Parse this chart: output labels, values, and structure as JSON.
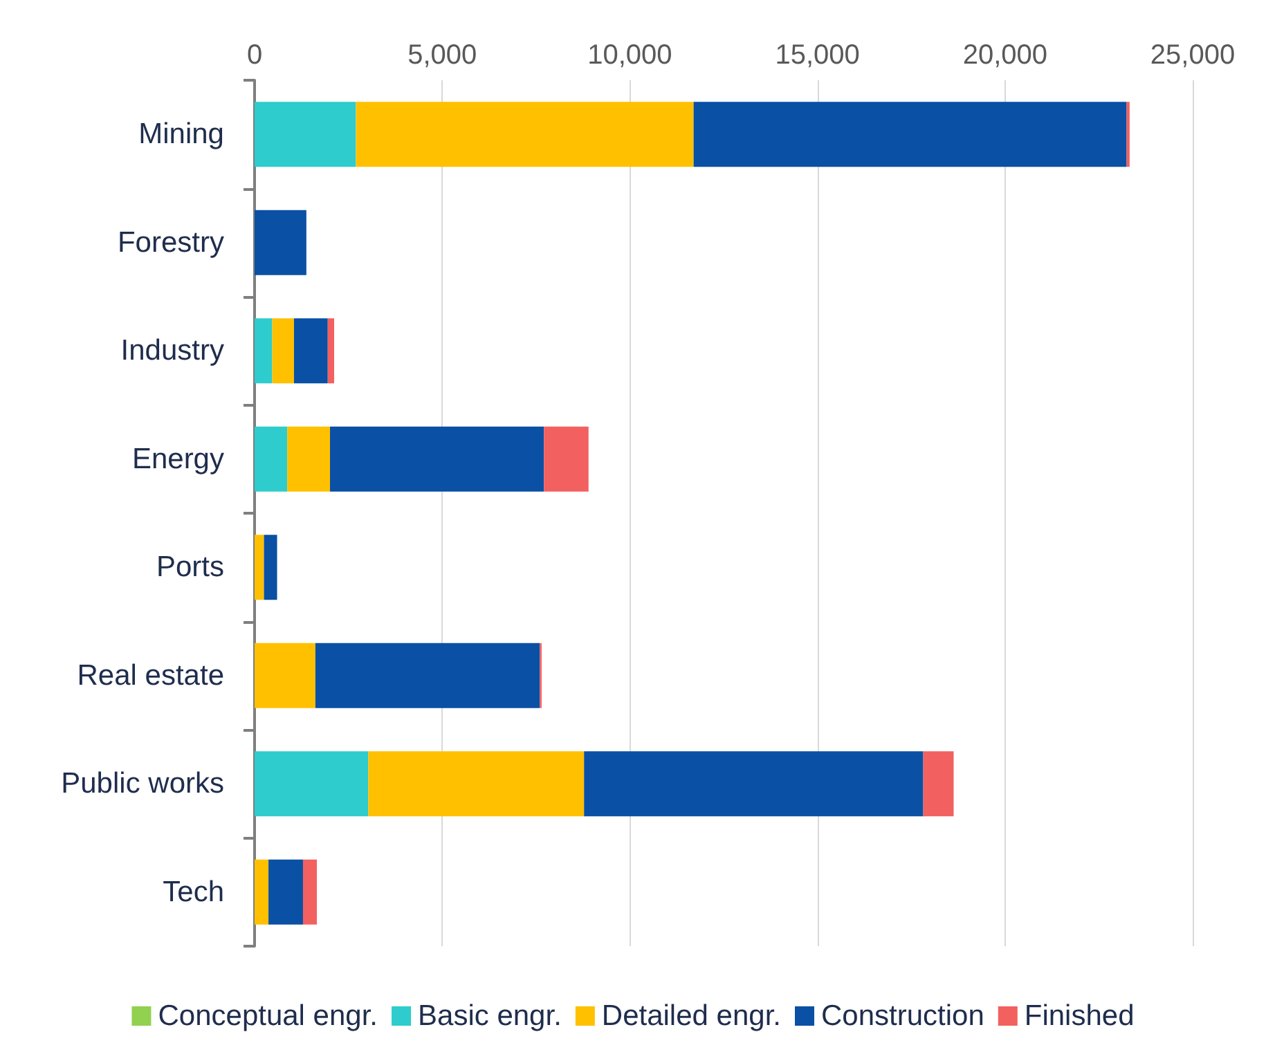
{
  "chart_data": {
    "type": "bar",
    "orientation": "horizontal",
    "stacked": true,
    "categories": [
      "Mining",
      "Forestry",
      "Industry",
      "Energy",
      "Ports",
      "Real estate",
      "Public works",
      "Tech"
    ],
    "series": [
      {
        "name": "Conceptual engr.",
        "color": "#92d050",
        "values": [
          0,
          0,
          0,
          0,
          0,
          0,
          0,
          0
        ]
      },
      {
        "name": "Basic engr.",
        "color": "#2ecccc",
        "values": [
          2700,
          0,
          470,
          870,
          0,
          0,
          3030,
          0
        ]
      },
      {
        "name": "Detailed engr.",
        "color": "#ffc000",
        "values": [
          9000,
          0,
          580,
          1140,
          250,
          1620,
          5750,
          370
        ]
      },
      {
        "name": "Construction",
        "color": "#0a50a4",
        "values": [
          11540,
          1380,
          900,
          5700,
          350,
          5980,
          9040,
          920
        ]
      },
      {
        "name": "Finished",
        "color": "#f26060",
        "values": [
          80,
          0,
          170,
          1190,
          0,
          50,
          810,
          370
        ]
      }
    ],
    "xlim": [
      0,
      25000
    ],
    "xticks": [
      {
        "value": 0,
        "label": "0"
      },
      {
        "value": 5000,
        "label": "5,000"
      },
      {
        "value": 10000,
        "label": "10,000"
      },
      {
        "value": 15000,
        "label": "15,000"
      },
      {
        "value": 20000,
        "label": "20,000"
      },
      {
        "value": 25000,
        "label": "25,000"
      }
    ],
    "grid": "x",
    "legend": "bottom"
  }
}
